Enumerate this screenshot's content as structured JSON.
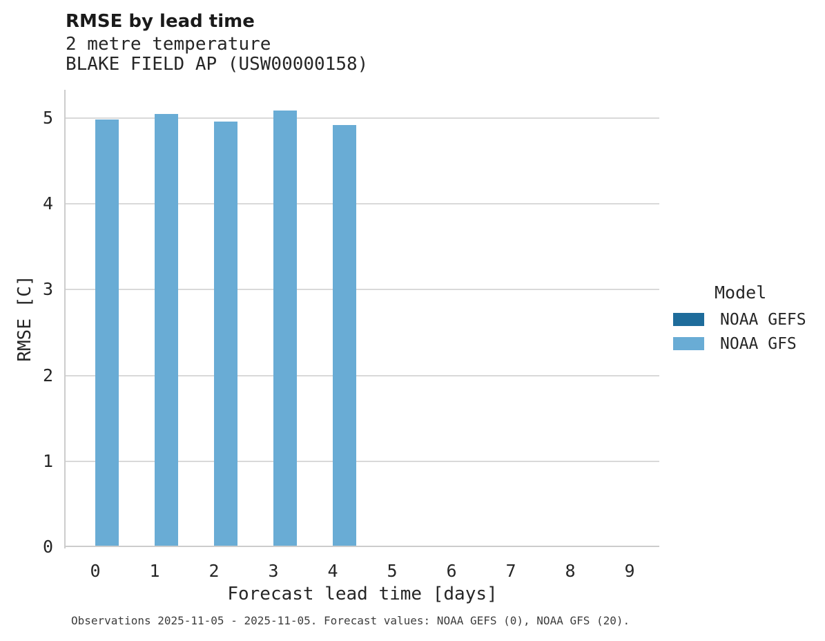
{
  "header": {
    "title": "RMSE by lead time",
    "subtitle_line1": "2 metre temperature",
    "subtitle_line2": "BLAKE FIELD AP (USW00000158)"
  },
  "legend": {
    "title": "Model",
    "entries": [
      {
        "label": "NOAA GEFS",
        "color": "#1e6c9b"
      },
      {
        "label": "NOAA GFS",
        "color": "#69acd5"
      }
    ]
  },
  "footer": {
    "note": "Observations 2025-11-05 - 2025-11-05. Forecast values: NOAA GEFS (0), NOAA GFS (20)."
  },
  "chart_data": {
    "type": "bar",
    "title": "RMSE by lead time",
    "subtitle": [
      "2 metre temperature",
      "BLAKE FIELD AP (USW00000158)"
    ],
    "xlabel": "Forecast lead time [days]",
    "ylabel": "RMSE [C]",
    "categories": [
      0,
      1,
      2,
      3,
      4,
      5,
      6,
      7,
      8,
      9
    ],
    "series": [
      {
        "name": "NOAA GEFS",
        "color": "#1e6c9b",
        "values": [
          null,
          null,
          null,
          null,
          null,
          null,
          null,
          null,
          null,
          null
        ]
      },
      {
        "name": "NOAA GFS",
        "color": "#69acd5",
        "values": [
          4.97,
          5.03,
          4.94,
          5.07,
          4.9,
          null,
          null,
          null,
          null,
          null
        ]
      }
    ],
    "y_ticks": [
      0,
      1,
      2,
      3,
      4,
      5
    ],
    "ylim": [
      0,
      5.33
    ],
    "grid": true,
    "legend_position": "right",
    "group_width_fraction": 0.8
  }
}
